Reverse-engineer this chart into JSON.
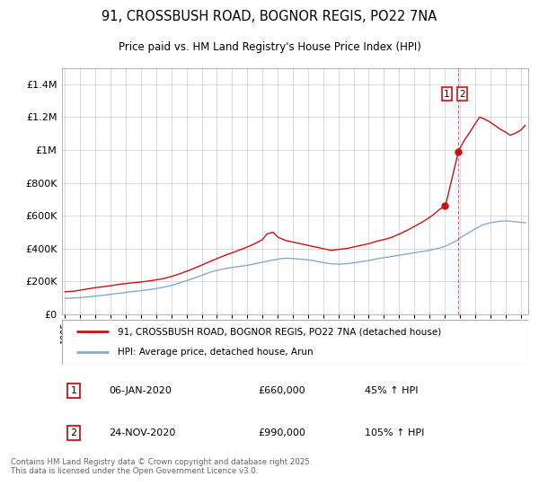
{
  "title": "91, CROSSBUSH ROAD, BOGNOR REGIS, PO22 7NA",
  "subtitle": "Price paid vs. HM Land Registry's House Price Index (HPI)",
  "red_label": "91, CROSSBUSH ROAD, BOGNOR REGIS, PO22 7NA (detached house)",
  "blue_label": "HPI: Average price, detached house, Arun",
  "annotation1_box": "1",
  "annotation1_date": "06-JAN-2020",
  "annotation1_price": "£660,000",
  "annotation1_hpi": "45% ↑ HPI",
  "annotation2_box": "2",
  "annotation2_date": "24-NOV-2020",
  "annotation2_price": "£990,000",
  "annotation2_hpi": "105% ↑ HPI",
  "footer": "Contains HM Land Registry data © Crown copyright and database right 2025.\nThis data is licensed under the Open Government Licence v3.0.",
  "sale1_x": 2020.01,
  "sale1_y": 660000,
  "sale2_x": 2020.9,
  "sale2_y": 990000,
  "vline_color": "#dd3333",
  "shade_color": "#ddeeff",
  "red_color": "#cc1111",
  "blue_color": "#88aacc",
  "ylim": [
    0,
    1500000
  ],
  "yticks": [
    0,
    200000,
    400000,
    600000,
    800000,
    1000000,
    1200000,
    1400000
  ],
  "xlim_start": 1994.8,
  "xlim_end": 2025.5
}
